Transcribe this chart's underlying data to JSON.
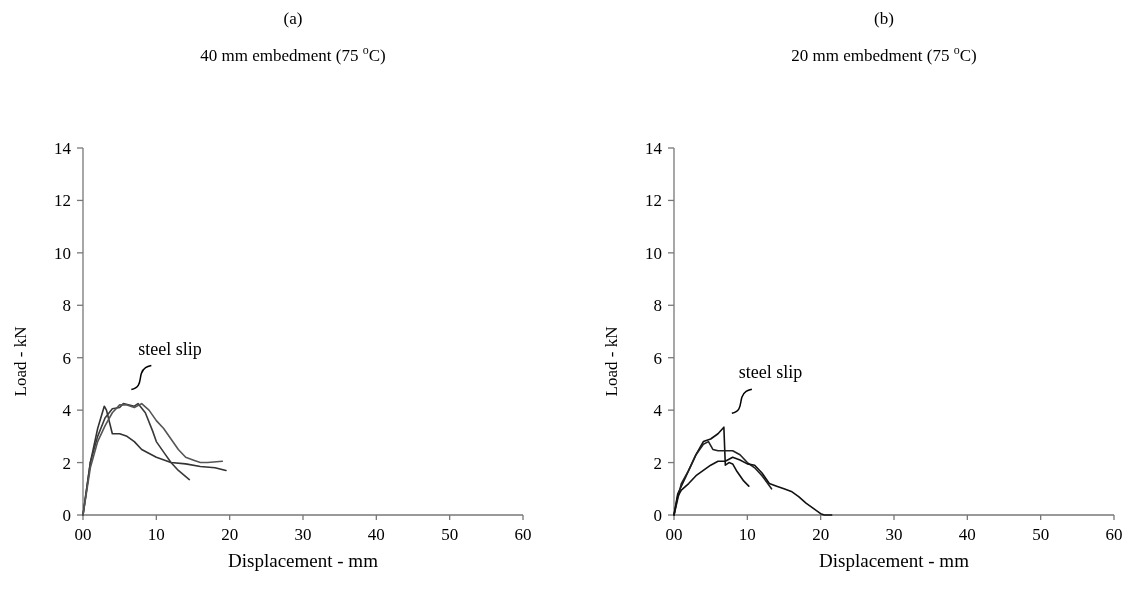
{
  "chart_data": [
    {
      "type": "line",
      "title": "(a)",
      "subtitle": "40 mm embedment (75 $^{o}$C)",
      "xlabel": "Displacement - mm",
      "ylabel": "Load - kN",
      "xlim": [
        0,
        60
      ],
      "xticks": [
        {
          "value": 0,
          "label": "00"
        },
        10,
        20,
        30,
        40,
        50,
        60
      ],
      "ylim": [
        0,
        14
      ],
      "yticks": [
        0,
        2,
        4,
        6,
        8,
        10,
        12,
        14
      ],
      "grid": false,
      "marker": "none",
      "line_style": "solid",
      "annotations": [
        "steel slip"
      ],
      "series": [
        {
          "color": "#333333",
          "x": [
            0,
            1,
            2,
            2.9,
            3.2,
            4,
            5,
            6,
            7,
            8,
            10,
            12,
            14,
            16,
            18,
            19.5
          ],
          "values": [
            0,
            2,
            3.3,
            4.15,
            4,
            3.1,
            3.1,
            3,
            2.8,
            2.5,
            2.2,
            2,
            1.95,
            1.85,
            1.8,
            1.7
          ]
        },
        {
          "color": "#3a3a3a",
          "x": [
            0,
            1,
            2,
            3,
            4,
            5,
            5.5,
            7,
            7.5,
            8.5,
            9.5,
            10,
            11,
            12,
            13,
            14.5
          ],
          "values": [
            0,
            2,
            3,
            3.7,
            4.05,
            4.1,
            4.25,
            4.15,
            4.25,
            3.9,
            3.2,
            2.8,
            2.4,
            2,
            1.7,
            1.35
          ]
        },
        {
          "color": "#555555",
          "x": [
            0,
            1,
            2,
            3,
            4,
            5,
            6,
            7,
            8,
            9,
            10,
            11,
            12,
            13,
            14,
            15,
            16,
            17,
            19
          ],
          "values": [
            0,
            1.8,
            2.8,
            3.4,
            3.9,
            4.2,
            4.2,
            4.1,
            4.25,
            4,
            3.6,
            3.3,
            2.9,
            2.5,
            2.2,
            2.1,
            2,
            2,
            2.05
          ]
        }
      ]
    },
    {
      "type": "line",
      "title": "(b)",
      "subtitle": "20 mm embedment (75 $^{o}$C)",
      "xlabel": "Displacement - mm",
      "ylabel": "Load - kN",
      "xlim": [
        0,
        60
      ],
      "xticks": [
        {
          "value": 0,
          "label": "00"
        },
        10,
        20,
        30,
        40,
        50,
        60
      ],
      "ylim": [
        0,
        14
      ],
      "yticks": [
        0,
        2,
        4,
        6,
        8,
        10,
        12,
        14
      ],
      "grid": false,
      "marker": "none",
      "line_style": "solid",
      "annotations": [
        "steel slip"
      ],
      "series": [
        {
          "color": "#111111",
          "x": [
            0,
            0.5,
            1.5,
            3,
            4,
            5,
            6,
            6.8,
            7,
            7.5,
            8,
            8.5,
            9.5,
            10.2
          ],
          "values": [
            0,
            0.8,
            1.4,
            2.3,
            2.8,
            2.9,
            3.1,
            3.35,
            1.9,
            2,
            1.95,
            1.7,
            1.3,
            1.1
          ]
        },
        {
          "color": "#222222",
          "x": [
            0,
            1,
            2,
            3,
            4,
            4.7,
            5.3,
            6,
            7,
            8,
            9,
            10,
            11,
            12,
            13.3
          ],
          "values": [
            0,
            1.2,
            1.7,
            2.3,
            2.7,
            2.8,
            2.5,
            2.45,
            2.45,
            2.45,
            2.3,
            2,
            1.8,
            1.5,
            1
          ]
        },
        {
          "color": "#111111",
          "x": [
            0,
            0.5,
            1,
            2,
            3,
            4,
            5,
            6,
            7,
            8,
            9,
            10,
            11,
            12,
            13,
            14,
            15,
            16,
            17,
            18,
            19,
            20,
            20.5,
            21.5
          ],
          "values": [
            0,
            0.7,
            0.95,
            1.2,
            1.5,
            1.7,
            1.9,
            2.05,
            2.05,
            2.2,
            2.1,
            1.95,
            1.9,
            1.6,
            1.2,
            1.1,
            1,
            0.9,
            0.7,
            0.45,
            0.25,
            0.05,
            0,
            0
          ]
        }
      ]
    }
  ]
}
